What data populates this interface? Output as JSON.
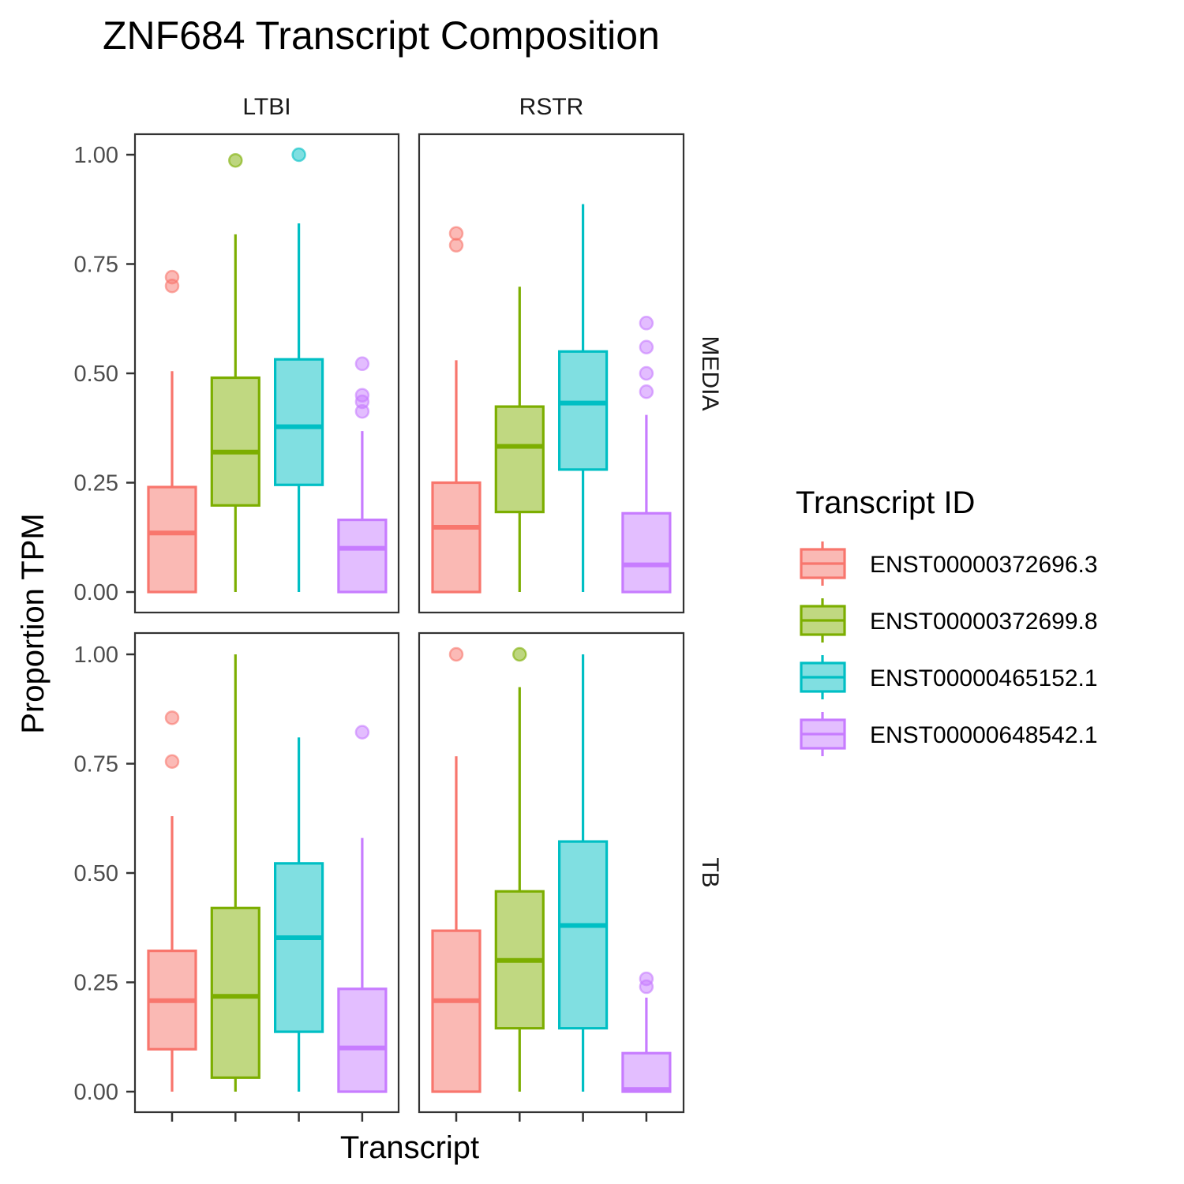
{
  "chart_data": {
    "type": "boxplot",
    "title": "ZNF684 Transcript Composition",
    "xlabel": "Transcript",
    "ylabel": "Proportion TPM",
    "ylim": [
      0,
      1
    ],
    "yticks": [
      "0.00",
      "0.25",
      "0.50",
      "0.75",
      "1.00"
    ],
    "facet_cols": [
      "LTBI",
      "RSTR"
    ],
    "facet_rows": [
      "MEDIA",
      "TB"
    ],
    "legend": {
      "title": "Transcript ID",
      "position": "right",
      "items": [
        {
          "label": "ENST00000372696.3",
          "color": "#F8766D",
          "fill": "#FAB9B4"
        },
        {
          "label": "ENST00000372699.8",
          "color": "#7CAE00",
          "fill": "#C0D881"
        },
        {
          "label": "ENST00000465152.1",
          "color": "#00BFC4",
          "fill": "#80DFE1"
        },
        {
          "label": "ENST00000648542.1",
          "color": "#C77CFF",
          "fill": "#E3BEFF"
        }
      ]
    },
    "panels": [
      {
        "col": "LTBI",
        "row": "MEDIA",
        "boxes": [
          {
            "transcript": "ENST00000372696.3",
            "q1": 0.0,
            "median": 0.135,
            "q3": 0.24,
            "whisker_low": 0.0,
            "whisker_high": 0.505,
            "outliers": [
              0.7,
              0.72
            ]
          },
          {
            "transcript": "ENST00000372699.8",
            "q1": 0.198,
            "median": 0.32,
            "q3": 0.49,
            "whisker_low": 0.0,
            "whisker_high": 0.818,
            "outliers": [
              0.987
            ]
          },
          {
            "transcript": "ENST00000465152.1",
            "q1": 0.245,
            "median": 0.378,
            "q3": 0.532,
            "whisker_low": 0.0,
            "whisker_high": 0.843,
            "outliers": [
              1.0
            ]
          },
          {
            "transcript": "ENST00000648542.1",
            "q1": 0.0,
            "median": 0.1,
            "q3": 0.165,
            "whisker_low": 0.0,
            "whisker_high": 0.368,
            "outliers": [
              0.413,
              0.435,
              0.45,
              0.522
            ]
          }
        ]
      },
      {
        "col": "RSTR",
        "row": "MEDIA",
        "boxes": [
          {
            "transcript": "ENST00000372696.3",
            "q1": 0.0,
            "median": 0.148,
            "q3": 0.25,
            "whisker_low": 0.0,
            "whisker_high": 0.53,
            "outliers": [
              0.793,
              0.82
            ]
          },
          {
            "transcript": "ENST00000372699.8",
            "q1": 0.183,
            "median": 0.333,
            "q3": 0.424,
            "whisker_low": 0.0,
            "whisker_high": 0.698,
            "outliers": []
          },
          {
            "transcript": "ENST00000465152.1",
            "q1": 0.28,
            "median": 0.432,
            "q3": 0.55,
            "whisker_low": 0.0,
            "whisker_high": 0.887,
            "outliers": []
          },
          {
            "transcript": "ENST00000648542.1",
            "q1": 0.0,
            "median": 0.062,
            "q3": 0.18,
            "whisker_low": 0.0,
            "whisker_high": 0.405,
            "outliers": [
              0.458,
              0.5,
              0.56,
              0.615
            ]
          }
        ]
      },
      {
        "col": "LTBI",
        "row": "TB",
        "boxes": [
          {
            "transcript": "ENST00000372696.3",
            "q1": 0.097,
            "median": 0.208,
            "q3": 0.322,
            "whisker_low": 0.0,
            "whisker_high": 0.63,
            "outliers": [
              0.755,
              0.855
            ]
          },
          {
            "transcript": "ENST00000372699.8",
            "q1": 0.032,
            "median": 0.218,
            "q3": 0.42,
            "whisker_low": 0.0,
            "whisker_high": 1.0,
            "outliers": []
          },
          {
            "transcript": "ENST00000465152.1",
            "q1": 0.137,
            "median": 0.352,
            "q3": 0.522,
            "whisker_low": 0.0,
            "whisker_high": 0.81,
            "outliers": []
          },
          {
            "transcript": "ENST00000648542.1",
            "q1": 0.0,
            "median": 0.1,
            "q3": 0.235,
            "whisker_low": 0.0,
            "whisker_high": 0.58,
            "outliers": [
              0.822
            ]
          }
        ]
      },
      {
        "col": "RSTR",
        "row": "TB",
        "boxes": [
          {
            "transcript": "ENST00000372696.3",
            "q1": 0.0,
            "median": 0.208,
            "q3": 0.368,
            "whisker_low": 0.0,
            "whisker_high": 0.767,
            "outliers": [
              1.0
            ]
          },
          {
            "transcript": "ENST00000372699.8",
            "q1": 0.145,
            "median": 0.3,
            "q3": 0.458,
            "whisker_low": 0.0,
            "whisker_high": 0.925,
            "outliers": [
              1.0
            ]
          },
          {
            "transcript": "ENST00000465152.1",
            "q1": 0.145,
            "median": 0.38,
            "q3": 0.572,
            "whisker_low": 0.0,
            "whisker_high": 1.0,
            "outliers": []
          },
          {
            "transcript": "ENST00000648542.1",
            "q1": 0.0,
            "median": 0.005,
            "q3": 0.088,
            "whisker_low": 0.0,
            "whisker_high": 0.215,
            "outliers": [
              0.24,
              0.258
            ]
          }
        ]
      }
    ]
  }
}
